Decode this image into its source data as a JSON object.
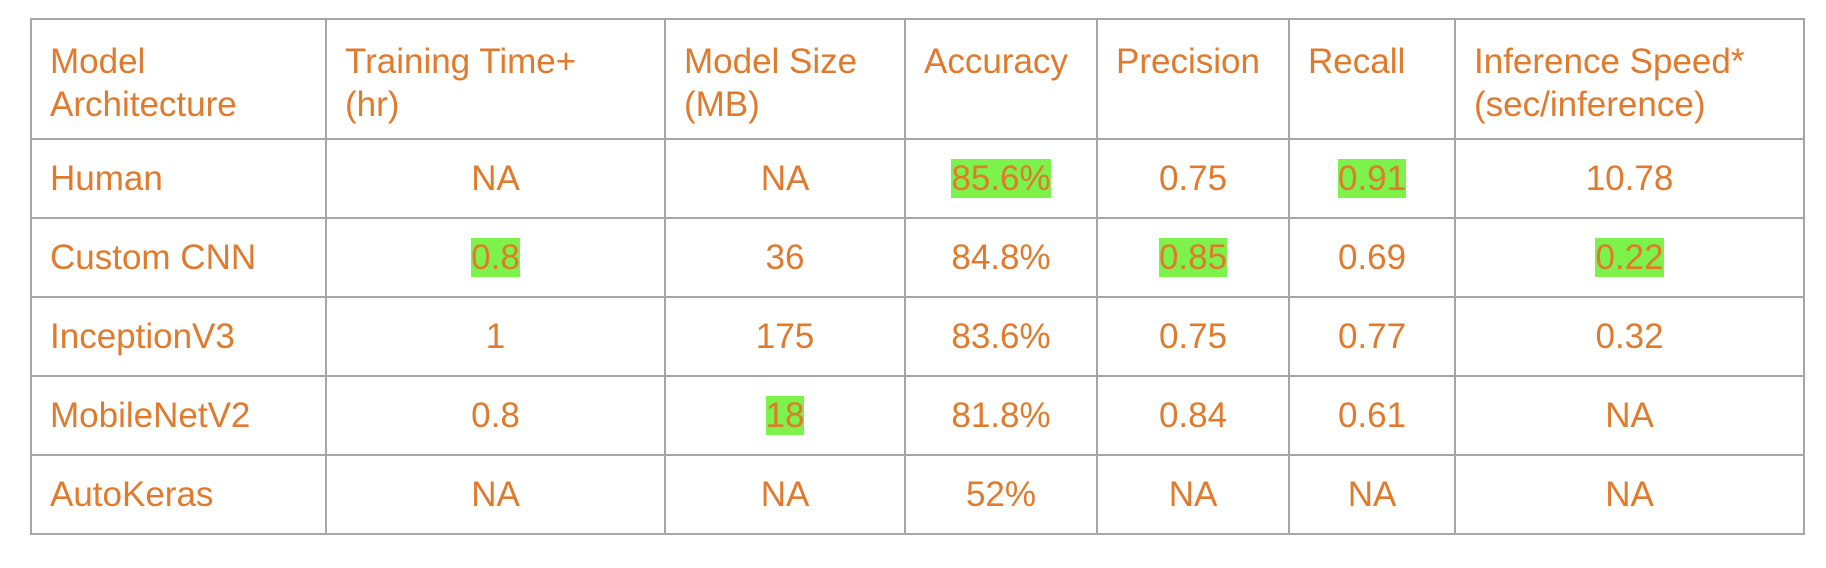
{
  "chart_data": {
    "type": "table",
    "highlight_color": "#7cf24b",
    "text_color": "#e07a2d",
    "border_color": "#a6a6a6",
    "columns": [
      [
        "Model",
        "Architecture"
      ],
      [
        "Training Time+",
        "(hr)"
      ],
      [
        "Model Size",
        "(MB)"
      ],
      [
        "Accuracy"
      ],
      [
        "Precision"
      ],
      [
        "Recall"
      ],
      [
        "Inference Speed*",
        "(sec/inference)"
      ]
    ],
    "rows": [
      [
        "Human",
        "NA",
        "NA",
        "85.6%",
        "0.75",
        "0.91",
        "10.78"
      ],
      [
        "Custom CNN",
        "0.8",
        "36",
        "84.8%",
        "0.85",
        "0.69",
        "0.22"
      ],
      [
        "InceptionV3",
        "1",
        "175",
        "83.6%",
        "0.75",
        "0.77",
        "0.32"
      ],
      [
        "MobileNetV2",
        "0.8",
        "18",
        "81.8%",
        "0.84",
        "0.61",
        "NA"
      ],
      [
        "AutoKeras",
        "NA",
        "NA",
        "52%",
        "NA",
        "NA",
        "NA"
      ]
    ],
    "highlighted_cells": [
      [
        0,
        3
      ],
      [
        0,
        5
      ],
      [
        1,
        1
      ],
      [
        1,
        4
      ],
      [
        1,
        6
      ],
      [
        3,
        2
      ]
    ]
  }
}
